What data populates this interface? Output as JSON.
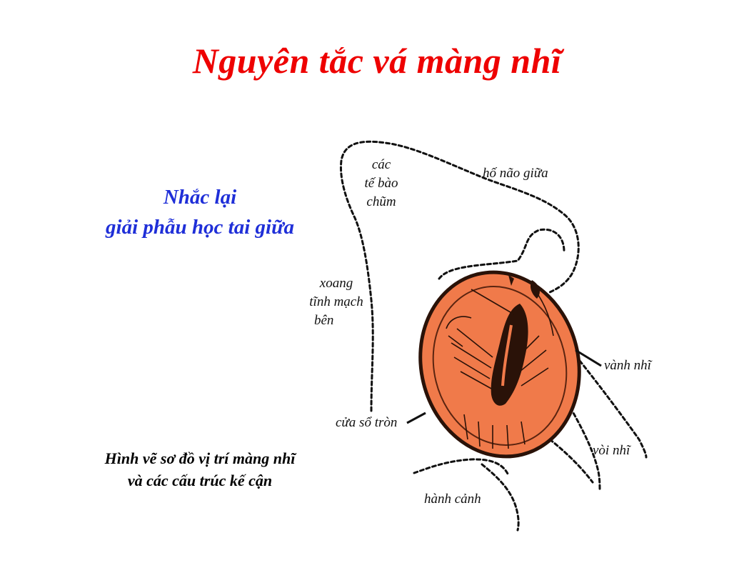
{
  "title": "Nguyên tắc vá màng nhĩ",
  "subtitle": {
    "line1": "Nhắc lại",
    "line2": "giải phẫu học tai giữa"
  },
  "caption": {
    "line1": "Hình vẽ sơ đồ vị trí màng nhĩ",
    "line2": "và các cấu trúc kế cận"
  },
  "labels": {
    "mastoid": {
      "line1": "các",
      "line2": "tế bào",
      "line3": "chũm"
    },
    "middle_fossa": "hố não giữa",
    "sinus": {
      "line1": "xoang",
      "line2": "tĩnh mạch",
      "line3": "bên"
    },
    "annulus": "vành nhĩ",
    "round_window": "cửa sổ tròn",
    "eustachian": "vòi nhĩ",
    "jugular": "hành cảnh"
  },
  "colors": {
    "title": "#ee0000",
    "subtitle": "#1f2fd8",
    "eardrum": "#f07a4a",
    "ink": "#111111"
  }
}
